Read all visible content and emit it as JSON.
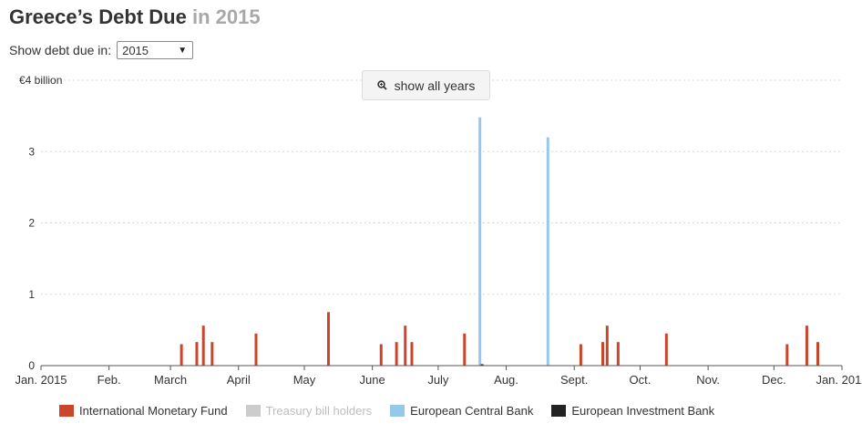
{
  "header": {
    "title_main": "Greece’s Debt Due",
    "title_year": "in 2015"
  },
  "controls": {
    "select_label": "Show debt due in:",
    "select_value": "2015",
    "show_all_label": "show all years"
  },
  "chart_data": {
    "type": "bar",
    "title": "Greece’s Debt Due in 2015",
    "xlabel": "",
    "ylabel": "",
    "ylim": [
      0,
      4
    ],
    "y_ticks": [
      {
        "value": 0,
        "label": "0"
      },
      {
        "value": 1,
        "label": "1"
      },
      {
        "value": 2,
        "label": "2"
      },
      {
        "value": 3,
        "label": "3"
      },
      {
        "value": 4,
        "label": "€4 billion"
      }
    ],
    "x_range": [
      "2015-01-01",
      "2016-01-01"
    ],
    "x_ticks": [
      {
        "date": "2015-01-01",
        "label": "Jan. 2015"
      },
      {
        "date": "2015-02-01",
        "label": "Feb."
      },
      {
        "date": "2015-03-01",
        "label": "March"
      },
      {
        "date": "2015-04-01",
        "label": "April"
      },
      {
        "date": "2015-05-01",
        "label": "May"
      },
      {
        "date": "2015-06-01",
        "label": "June"
      },
      {
        "date": "2015-07-01",
        "label": "July"
      },
      {
        "date": "2015-08-01",
        "label": "Aug."
      },
      {
        "date": "2015-09-01",
        "label": "Sept."
      },
      {
        "date": "2015-10-01",
        "label": "Oct."
      },
      {
        "date": "2015-11-01",
        "label": "Nov."
      },
      {
        "date": "2015-12-01",
        "label": "Dec."
      },
      {
        "date": "2016-01-01",
        "label": "Jan. 2016"
      }
    ],
    "grid": true,
    "legend_position": "bottom",
    "series": [
      {
        "name": "International Monetary Fund",
        "color": "#c9452c",
        "points": [
          {
            "date": "2015-03-06",
            "value": 0.3
          },
          {
            "date": "2015-03-13",
            "value": 0.33
          },
          {
            "date": "2015-03-16",
            "value": 0.56
          },
          {
            "date": "2015-03-20",
            "value": 0.33
          },
          {
            "date": "2015-04-09",
            "value": 0.45
          },
          {
            "date": "2015-05-12",
            "value": 0.75
          },
          {
            "date": "2015-06-05",
            "value": 0.3
          },
          {
            "date": "2015-06-12",
            "value": 0.33
          },
          {
            "date": "2015-06-16",
            "value": 0.56
          },
          {
            "date": "2015-06-19",
            "value": 0.33
          },
          {
            "date": "2015-07-13",
            "value": 0.45
          },
          {
            "date": "2015-09-04",
            "value": 0.3
          },
          {
            "date": "2015-09-14",
            "value": 0.33
          },
          {
            "date": "2015-09-16",
            "value": 0.56
          },
          {
            "date": "2015-09-21",
            "value": 0.33
          },
          {
            "date": "2015-10-13",
            "value": 0.45
          },
          {
            "date": "2015-12-07",
            "value": 0.3
          },
          {
            "date": "2015-12-16",
            "value": 0.56
          },
          {
            "date": "2015-12-21",
            "value": 0.33
          }
        ]
      },
      {
        "name": "Treasury bill holders",
        "color": "#cccccc",
        "points": []
      },
      {
        "name": "European Central Bank",
        "color": "#95c8ec",
        "points": [
          {
            "date": "2015-07-20",
            "value": 3.48
          },
          {
            "date": "2015-08-20",
            "value": 3.2
          }
        ]
      },
      {
        "name": "European Investment Bank",
        "color": "#222222",
        "points": [
          {
            "date": "2015-07-21",
            "value": 0.02
          }
        ]
      }
    ]
  }
}
